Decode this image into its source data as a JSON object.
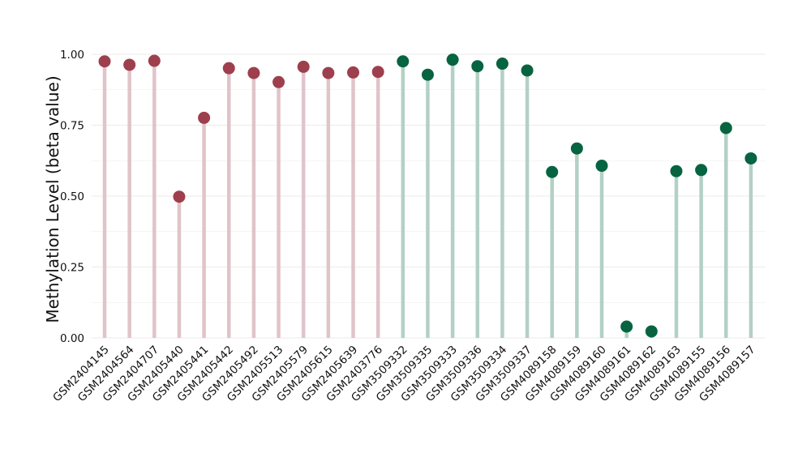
{
  "chart_data": {
    "type": "lollipop",
    "ylabel": "Methylation Level (beta value)",
    "xlabel": "",
    "ylim": [
      0,
      1
    ],
    "yticks": [
      0,
      0.25,
      0.5,
      0.75,
      1
    ],
    "ytick_labels": [
      "0.00",
      "0.25",
      "0.50",
      "0.75",
      "1.00"
    ],
    "grid": true,
    "legend": "none",
    "colors": {
      "group1_point": "#9e3f4d",
      "group1_stem": "#e0c4c9",
      "group2_point": "#066441",
      "group2_stem": "#b3d0c4",
      "grid": "#ebebeb"
    },
    "categories": [
      "GSM2404145",
      "GSM2404564",
      "GSM2404707",
      "GSM2405440",
      "GSM2405441",
      "GSM2405442",
      "GSM2405492",
      "GSM2405513",
      "GSM2405579",
      "GSM2405615",
      "GSM2405639",
      "GSM2403776",
      "GSM3509332",
      "GSM3509335",
      "GSM3509333",
      "GSM3509336",
      "GSM3509334",
      "GSM3509337",
      "GSM4089158",
      "GSM4089159",
      "GSM4089160",
      "GSM4089161",
      "GSM4089162",
      "GSM4089163",
      "GSM4089155",
      "GSM4089156",
      "GSM4089157"
    ],
    "values": [
      0.975,
      0.963,
      0.977,
      0.498,
      0.776,
      0.951,
      0.934,
      0.902,
      0.956,
      0.934,
      0.936,
      0.938,
      0.975,
      0.928,
      0.981,
      0.958,
      0.967,
      0.943,
      0.585,
      0.668,
      0.607,
      0.04,
      0.023,
      0.588,
      0.592,
      0.74,
      0.633
    ],
    "groups": [
      1,
      1,
      1,
      1,
      1,
      1,
      1,
      1,
      1,
      1,
      1,
      1,
      2,
      2,
      2,
      2,
      2,
      2,
      2,
      2,
      2,
      2,
      2,
      2,
      2,
      2,
      2
    ]
  }
}
